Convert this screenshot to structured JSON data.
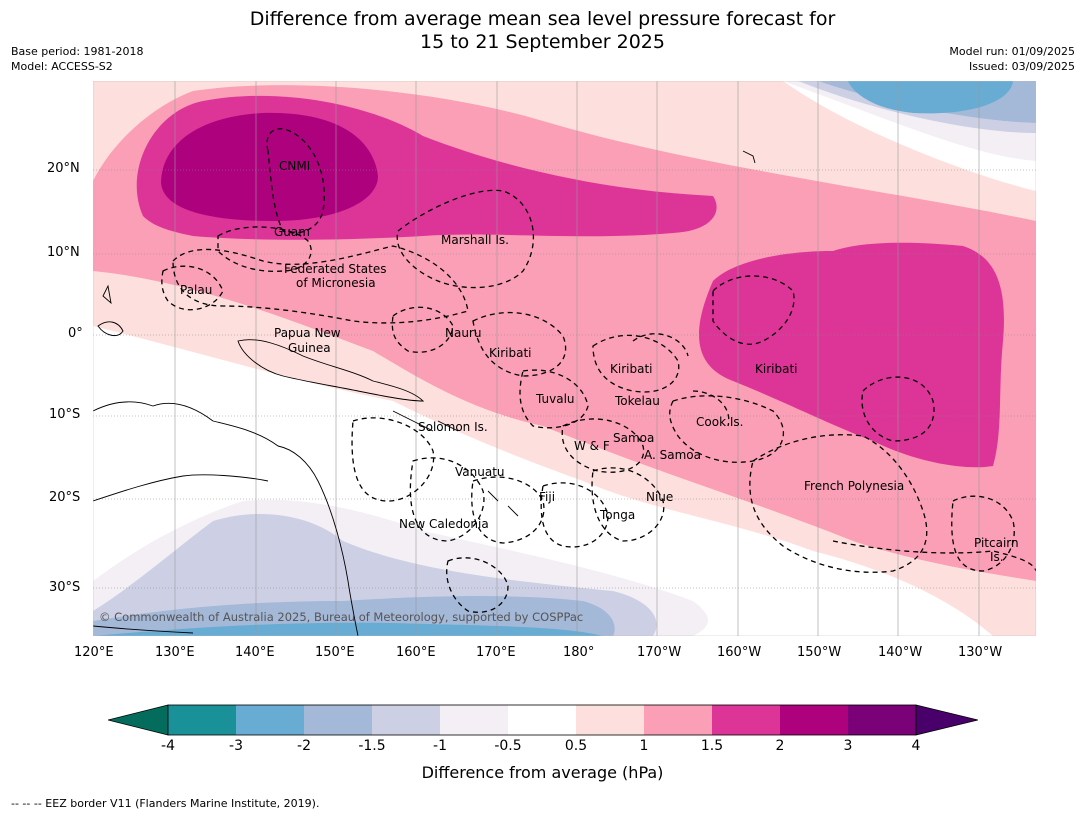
{
  "title_line1": "Difference from average mean sea level pressure forecast for",
  "title_line2": "15 to 21 September 2025",
  "base_period": "Base period: 1981-2018",
  "model": "Model: ACCESS-S2",
  "model_run": "Model run: 01/09/2025",
  "issued": "Issued: 03/09/2025",
  "lon_ticks": [
    "120°E",
    "130°E",
    "140°E",
    "150°E",
    "160°E",
    "170°E",
    "180°",
    "170°W",
    "160°W",
    "150°W",
    "140°W",
    "130°W"
  ],
  "lat_ticks": [
    "20°N",
    "10°N",
    "0°",
    "10°S",
    "20°S",
    "30°S"
  ],
  "regions": {
    "cnmi": "CNMI",
    "guam": "Guam",
    "marshall": "Marshall Is.",
    "fsm1": "Federated States",
    "fsm2": "of Micronesia",
    "palau": "Palau",
    "png1": "Papua New",
    "png2": "Guinea",
    "nauru": "Nauru",
    "kiribati_w": "Kiribati",
    "kiribati_c": "Kiribati",
    "kiribati_e": "Kiribati",
    "tuvalu": "Tuvalu",
    "tokelau": "Tokelau",
    "cook": "Cook Is.",
    "solomon": "Solomon Is.",
    "wf": "W & F",
    "samoa": "Samoa",
    "asamoa": "A. Samoa",
    "vanuatu": "Vanuatu",
    "fiji": "Fiji",
    "niue": "Niue",
    "tonga": "Tonga",
    "newcal": "New Caledonia",
    "frpoly": "French Polynesia",
    "pitcairn1": "Pitcairn",
    "pitcairn2": "Is."
  },
  "copyright": "© Commonwealth of Australia 2025, Bureau of Meteorology, supported by COSPPac",
  "colorbar": {
    "title": "Difference from average (hPa)",
    "ticks": [
      "-4",
      "-3",
      "-2",
      "-1.5",
      "-1",
      "-0.5",
      "0.5",
      "1",
      "1.5",
      "2",
      "3",
      "4"
    ],
    "colors": {
      "below_min": "#046c5c",
      "c1": "#1a9199",
      "c2": "#68acd4",
      "c3": "#a4b8d8",
      "c4": "#cdd0e5",
      "c5": "#f3eff5",
      "c6": "#ffffff",
      "c7": "#fde0dd",
      "c8": "#fa9fb5",
      "c9": "#dd3497",
      "c10": "#ae017e",
      "c11": "#7a0177",
      "above_max": "#49006a"
    }
  },
  "footnote": "--  --  -- EEZ border V11 (Flanders Marine Institute, 2019)."
}
